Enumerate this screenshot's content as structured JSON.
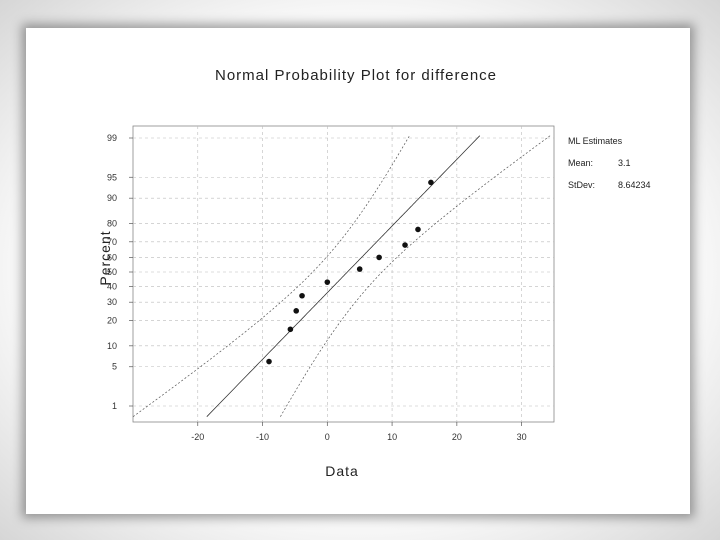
{
  "chart_data": {
    "type": "scatter",
    "title": "Normal Probability Plot for difference",
    "xlabel": "Data",
    "ylabel": "Percent",
    "xlim": [
      -30,
      35
    ],
    "x_ticks": [
      -20,
      -10,
      0,
      10,
      20,
      30
    ],
    "y_ticks": [
      1,
      5,
      10,
      20,
      30,
      40,
      50,
      60,
      70,
      80,
      90,
      95,
      99
    ],
    "y_scale": "normal-probability",
    "grid": true,
    "points": [
      {
        "x": -9,
        "y": 6
      },
      {
        "x": -5.7,
        "y": 16
      },
      {
        "x": -4.8,
        "y": 25
      },
      {
        "x": -3.9,
        "y": 34
      },
      {
        "x": 0,
        "y": 43
      },
      {
        "x": 5,
        "y": 52
      },
      {
        "x": 8,
        "y": 60
      },
      {
        "x": 12,
        "y": 68
      },
      {
        "x": 14,
        "y": 77
      },
      {
        "x": 16,
        "y": 94
      }
    ],
    "fit_line": {
      "mean": 3.1,
      "stdev": 8.64234
    },
    "confidence_band": {
      "style": "dashed"
    },
    "annotation": {
      "header": "ML Estimates",
      "rows": [
        {
          "label": "Mean:",
          "value": "3.1"
        },
        {
          "label": "StDev:",
          "value": "8.64234"
        }
      ]
    }
  }
}
